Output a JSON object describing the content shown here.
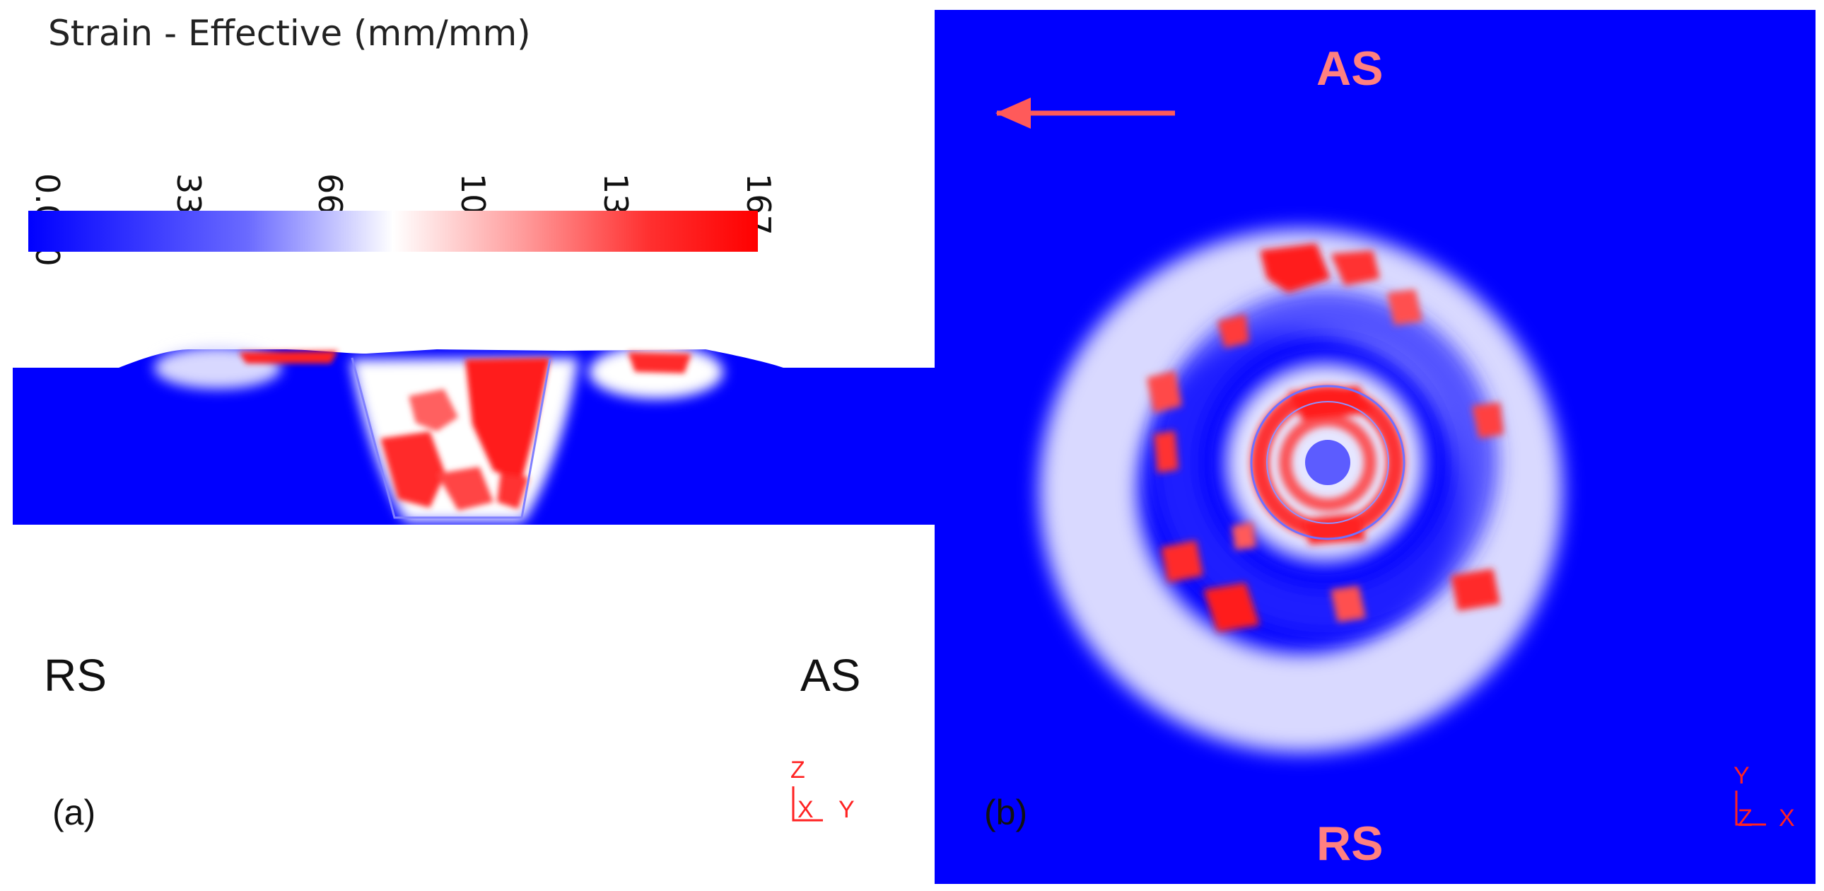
{
  "legend": {
    "title": "Strain - Effective (mm/mm)",
    "ticks": [
      "0.000",
      "33.4",
      "66.8",
      "100",
      "134",
      "167"
    ]
  },
  "panel_a": {
    "label": "(a)",
    "left_side": "RS",
    "right_side": "AS",
    "axis_z": "Z",
    "axis_x": "X",
    "axis_y": "Y"
  },
  "panel_b": {
    "label": "(b)",
    "top_side": "AS",
    "bottom_side": "RS",
    "axis_y": "Y",
    "axis_z": "Z",
    "axis_x": "X"
  },
  "colors": {
    "low": "#0000ff",
    "mid": "#ffffff",
    "high": "#ff0000",
    "annotation": "#ff8080",
    "axis": "#ff2222"
  }
}
